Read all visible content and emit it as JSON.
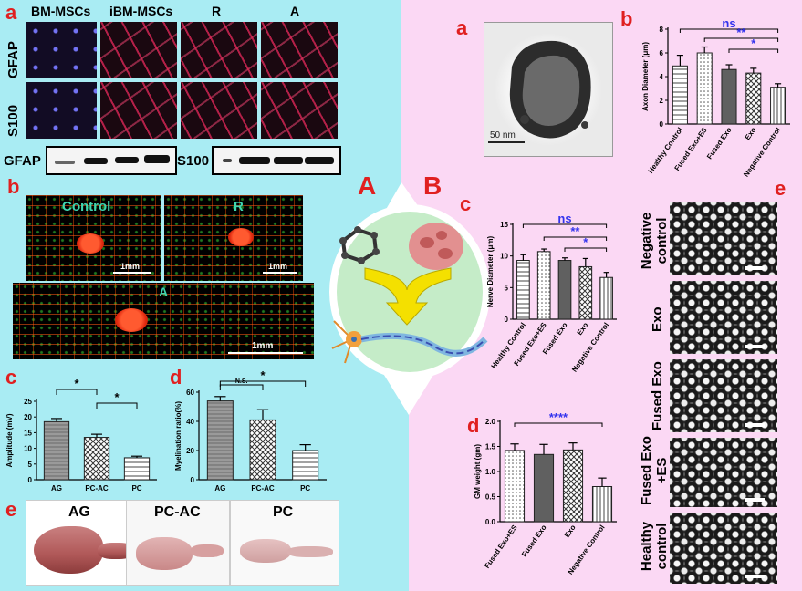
{
  "left_panel": {
    "group_label": "A",
    "a": {
      "label": "a",
      "columns": [
        "BM-MSCs",
        "iBM-MSCs",
        "R",
        "A"
      ],
      "rows": [
        "GFAP",
        "S100"
      ],
      "blots": [
        "GFAP",
        "S100"
      ]
    },
    "b": {
      "label": "b",
      "images": [
        "Control",
        "R",
        "A"
      ],
      "scale": [
        "1mm",
        "1mm",
        "1mm"
      ]
    },
    "c": {
      "label": "c"
    },
    "d": {
      "label": "d"
    },
    "e": {
      "label": "e",
      "organs": [
        "AG",
        "PC-AC",
        "PC"
      ]
    }
  },
  "right_panel": {
    "group_label": "B",
    "a": {
      "label": "a",
      "scale": "50 nm"
    },
    "b": {
      "label": "b"
    },
    "c": {
      "label": "c"
    },
    "d": {
      "label": "d"
    },
    "e": {
      "label": "e",
      "rows": [
        "Negative control",
        "Exo",
        "Fused Exo",
        "Fused Exo +ES",
        "Healthy control"
      ]
    }
  },
  "chart_data": [
    {
      "id": "A-c",
      "type": "bar",
      "ylabel": "Amplitude (mV)",
      "ylim": [
        0,
        25
      ],
      "yticks": [
        0,
        5,
        10,
        15,
        20,
        25
      ],
      "categories": [
        "AG",
        "PC-AC",
        "PC"
      ],
      "values": [
        18.5,
        13.5,
        7
      ],
      "errors": [
        1.0,
        1.0,
        0.5
      ],
      "significance": [
        {
          "from": "AG",
          "to": "PC-AC",
          "label": "*"
        },
        {
          "from": "PC-AC",
          "to": "PC",
          "label": "*"
        }
      ]
    },
    {
      "id": "A-d",
      "type": "bar",
      "ylabel": "Myelination ratio(%)",
      "ylim": [
        0,
        60
      ],
      "yticks": [
        0,
        20,
        40,
        60
      ],
      "categories": [
        "AG",
        "PC-AC",
        "PC"
      ],
      "values": [
        54,
        41,
        20
      ],
      "errors": [
        3,
        7,
        4
      ],
      "significance": [
        {
          "from": "AG",
          "to": "PC-AC",
          "label": "N.S."
        },
        {
          "from": "AG",
          "to": "PC",
          "label": "*"
        }
      ]
    },
    {
      "id": "B-b",
      "type": "bar",
      "ylabel": "Axon Diameter (μm)",
      "ylim": [
        0,
        8
      ],
      "yticks": [
        0,
        2,
        4,
        6,
        8
      ],
      "categories": [
        "Healthy Control",
        "Fused Exo+ES",
        "Fused Exo",
        "Exo",
        "Negative Control"
      ],
      "values": [
        4.9,
        6.0,
        4.6,
        4.3,
        3.1
      ],
      "errors": [
        0.9,
        0.5,
        0.4,
        0.4,
        0.3
      ],
      "significance": [
        {
          "from": "Healthy Control",
          "to": "Negative Control",
          "label": "ns"
        },
        {
          "from": "Fused Exo+ES",
          "to": "Negative Control",
          "label": "**"
        },
        {
          "from": "Fused Exo",
          "to": "Negative Control",
          "label": "*"
        }
      ]
    },
    {
      "id": "B-c",
      "type": "bar",
      "ylabel": "Nerve Diameter (μm)",
      "ylim": [
        0,
        15
      ],
      "yticks": [
        0,
        5,
        10,
        15
      ],
      "categories": [
        "Healthy Control",
        "Fused Exo+ES",
        "Fused Exo",
        "Exo",
        "Negative Control"
      ],
      "values": [
        9.3,
        10.7,
        9.3,
        8.3,
        6.6
      ],
      "errors": [
        0.9,
        0.4,
        0.4,
        1.3,
        0.8
      ],
      "significance": [
        {
          "from": "Healthy Control",
          "to": "Negative Control",
          "label": "ns"
        },
        {
          "from": "Fused Exo+ES",
          "to": "Negative Control",
          "label": "**"
        },
        {
          "from": "Fused Exo",
          "to": "Negative Control",
          "label": "*"
        }
      ]
    },
    {
      "id": "B-d",
      "type": "bar",
      "ylabel": "GM weight (gm)",
      "ylim": [
        0,
        2.0
      ],
      "yticks": [
        0.0,
        0.5,
        1.0,
        1.5,
        2.0
      ],
      "categories": [
        "Fused Exo+ES",
        "Fused Exo",
        "Exo",
        "Negative Control"
      ],
      "values": [
        1.42,
        1.34,
        1.43,
        0.7
      ],
      "errors": [
        0.13,
        0.2,
        0.14,
        0.17
      ],
      "significance": [
        {
          "from": "Fused Exo+ES",
          "to": "Negative Control",
          "label": "****"
        }
      ]
    }
  ],
  "colors": {
    "left_bg": "#a9ecf3",
    "right_bg": "#fbd8f4",
    "label_red": "#e02020",
    "sig_blue": "#3333ee",
    "bar_dark": "#606060"
  }
}
